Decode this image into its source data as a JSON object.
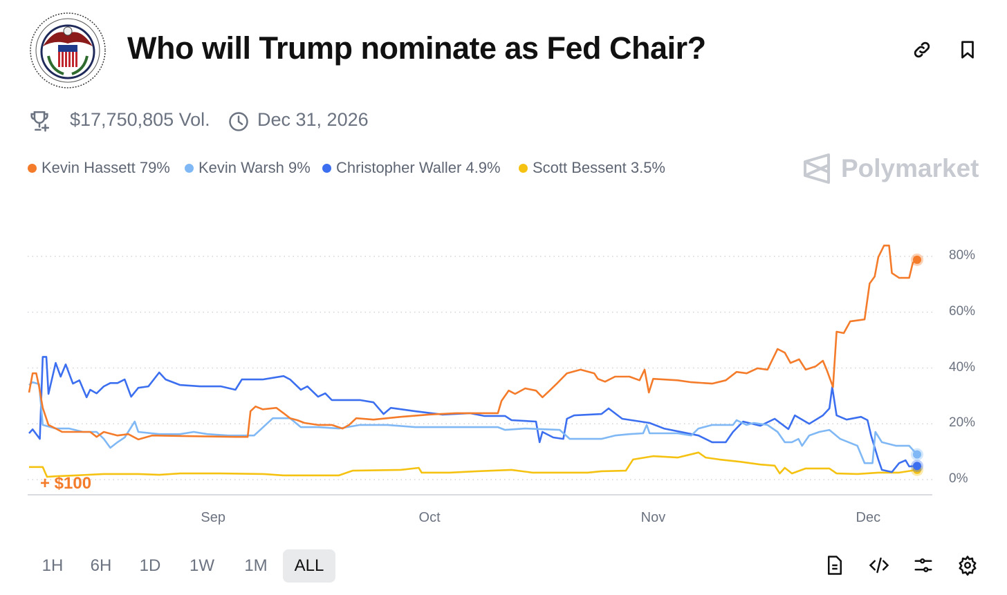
{
  "header": {
    "logo_text": "BOARD OF GOVERNORS OF THE FEDERAL RESERVE SYSTEM",
    "title": "Who will Trump nominate as Fed Chair?",
    "icons": [
      "link-icon",
      "bookmark-icon"
    ]
  },
  "meta": {
    "volume": "$17,750,805 Vol.",
    "end_date": "Dec 31, 2026"
  },
  "brand": "Polymarket",
  "annotation": "+ $100",
  "time_ranges": [
    "1H",
    "6H",
    "1D",
    "1W",
    "1M",
    "ALL"
  ],
  "selected_range": "ALL",
  "footer_icons": [
    "document-icon",
    "code-icon",
    "sliders-icon",
    "settings-icon"
  ],
  "chart_data": {
    "type": "line",
    "title": "Who will Trump nominate as Fed Chair?",
    "x_unit": "days since Aug 6",
    "xlim": [
      0,
      123.5
    ],
    "ylim": [
      0,
      85
    ],
    "ylabel": "",
    "y_ticks": [
      0,
      20,
      40,
      60,
      80
    ],
    "y_tick_labels": [
      "0%",
      "20%",
      "40%",
      "60%",
      "80%"
    ],
    "x_ticks": [
      25.6,
      55.7,
      86.8,
      116.7
    ],
    "x_tick_labels": [
      "Sep",
      "Oct",
      "Nov",
      "Dec"
    ],
    "grid": true,
    "legend_position": "top-left",
    "series": [
      {
        "name": "Kevin Hassett",
        "label": "Kevin Hassett 79%",
        "color": "#f47b2a",
        "last": 79,
        "points": [
          [
            0,
            31.2
          ],
          [
            0.5,
            38.1
          ],
          [
            1,
            38.1
          ],
          [
            1.4,
            33.2
          ],
          [
            1.9,
            25.7
          ],
          [
            2.7,
            19.6
          ],
          [
            3.7,
            18.3
          ],
          [
            4.6,
            17.1
          ],
          [
            8.5,
            17.1
          ],
          [
            9.4,
            15.3
          ],
          [
            10.4,
            17.1
          ],
          [
            12.3,
            15.8
          ],
          [
            13.8,
            16.3
          ],
          [
            15.2,
            14.4
          ],
          [
            17.1,
            15.8
          ],
          [
            28.7,
            15.3
          ],
          [
            30.4,
            15.3
          ],
          [
            30.8,
            24.5
          ],
          [
            31.5,
            26.2
          ],
          [
            32.5,
            25.2
          ],
          [
            34.4,
            25.7
          ],
          [
            35.4,
            23.8
          ],
          [
            36.3,
            22
          ],
          [
            37.3,
            21.3
          ],
          [
            38.3,
            20.3
          ],
          [
            40.2,
            19.6
          ],
          [
            42.1,
            19.6
          ],
          [
            43.6,
            18.3
          ],
          [
            44.5,
            19.6
          ],
          [
            45.5,
            22
          ],
          [
            47.9,
            21.5
          ],
          [
            51.7,
            22.5
          ],
          [
            55.6,
            23.3
          ],
          [
            59.4,
            23.8
          ],
          [
            65.2,
            23.8
          ],
          [
            65.7,
            28.2
          ],
          [
            66.7,
            31.9
          ],
          [
            67.6,
            30.7
          ],
          [
            69,
            32.7
          ],
          [
            70.5,
            31.9
          ],
          [
            71.4,
            29.5
          ],
          [
            72.4,
            31.9
          ],
          [
            73.4,
            34.4
          ],
          [
            74.8,
            38.1
          ],
          [
            76.7,
            39.4
          ],
          [
            78.6,
            38.1
          ],
          [
            79.1,
            36.1
          ],
          [
            80.1,
            35.1
          ],
          [
            81.5,
            36.9
          ],
          [
            83.5,
            36.9
          ],
          [
            84.9,
            35.6
          ],
          [
            85.6,
            39.4
          ],
          [
            86.2,
            31.2
          ],
          [
            86.8,
            36.1
          ],
          [
            90.2,
            35.6
          ],
          [
            92.1,
            34.9
          ],
          [
            95,
            34.4
          ],
          [
            96.9,
            35.6
          ],
          [
            98.4,
            38.6
          ],
          [
            99.8,
            38.1
          ],
          [
            101.3,
            39.9
          ],
          [
            102.7,
            39.4
          ],
          [
            104.1,
            46.8
          ],
          [
            105.1,
            45.5
          ],
          [
            105.9,
            41.8
          ],
          [
            107.1,
            43.1
          ],
          [
            108,
            39.4
          ],
          [
            109.4,
            40.6
          ],
          [
            110.4,
            42.6
          ],
          [
            111,
            38.9
          ],
          [
            111.8,
            33.2
          ],
          [
            112.3,
            53
          ],
          [
            113.3,
            52.5
          ],
          [
            114.2,
            56.7
          ],
          [
            116.2,
            57.4
          ],
          [
            116.9,
            70.3
          ],
          [
            117.6,
            72.8
          ],
          [
            118.1,
            79.7
          ],
          [
            118.9,
            83.9
          ],
          [
            119.6,
            83.9
          ],
          [
            120,
            74
          ],
          [
            121,
            72.3
          ],
          [
            122.4,
            72.3
          ],
          [
            122.9,
            77.7
          ],
          [
            123.5,
            78.8
          ]
        ]
      },
      {
        "name": "Kevin Warsh",
        "label": "Kevin Warsh 9%",
        "color": "#7fb8f5",
        "last": 9,
        "points": [
          [
            0,
            33.9
          ],
          [
            0.5,
            34.9
          ],
          [
            1.4,
            34.2
          ],
          [
            1.9,
            19.6
          ],
          [
            3.7,
            18.3
          ],
          [
            5.6,
            18.3
          ],
          [
            7.5,
            17.1
          ],
          [
            9.4,
            17.1
          ],
          [
            10.4,
            14.6
          ],
          [
            11.3,
            11.4
          ],
          [
            12.3,
            13.4
          ],
          [
            13.3,
            15.1
          ],
          [
            14.7,
            20.8
          ],
          [
            15.2,
            17.1
          ],
          [
            18.1,
            16.3
          ],
          [
            21,
            16.3
          ],
          [
            22.9,
            17.1
          ],
          [
            24.8,
            16.3
          ],
          [
            27.7,
            15.8
          ],
          [
            31.3,
            15.8
          ],
          [
            33.9,
            22
          ],
          [
            36.3,
            22
          ],
          [
            37.8,
            18.8
          ],
          [
            40.2,
            18.8
          ],
          [
            43.1,
            18.3
          ],
          [
            46,
            19.6
          ],
          [
            49.8,
            19.6
          ],
          [
            53.7,
            18.8
          ],
          [
            65.2,
            18.8
          ],
          [
            66.2,
            17.8
          ],
          [
            69,
            18.3
          ],
          [
            73.8,
            17.8
          ],
          [
            75.2,
            14.6
          ],
          [
            79.6,
            14.6
          ],
          [
            81.5,
            15.8
          ],
          [
            83.5,
            16.3
          ],
          [
            85.4,
            16.6
          ],
          [
            85.9,
            19.6
          ],
          [
            86.3,
            16.6
          ],
          [
            90.2,
            16.6
          ],
          [
            92.1,
            15.8
          ],
          [
            93.1,
            18.3
          ],
          [
            95,
            19.6
          ],
          [
            97.9,
            19.6
          ],
          [
            98.4,
            21.3
          ],
          [
            99.8,
            19.6
          ],
          [
            100.8,
            20.3
          ],
          [
            102.7,
            19.6
          ],
          [
            104.1,
            17.1
          ],
          [
            105.1,
            13.4
          ],
          [
            106.1,
            13.4
          ],
          [
            107,
            14.6
          ],
          [
            107.5,
            12.1
          ],
          [
            108.5,
            15.8
          ],
          [
            109.9,
            17.1
          ],
          [
            111.3,
            17.8
          ],
          [
            112.8,
            14.6
          ],
          [
            115.2,
            12.1
          ],
          [
            116.2,
            5.9
          ],
          [
            117.3,
            5.9
          ],
          [
            117.7,
            17.1
          ],
          [
            118.6,
            13.4
          ],
          [
            120.6,
            12.1
          ],
          [
            122.4,
            12.1
          ],
          [
            123.5,
            9
          ]
        ]
      },
      {
        "name": "Christopher Waller",
        "label": "Christopher Waller 4.9%",
        "color": "#3b6ff0",
        "last": 4.9,
        "points": [
          [
            0,
            16.6
          ],
          [
            0.5,
            18
          ],
          [
            1.5,
            14.6
          ],
          [
            1.9,
            44
          ],
          [
            2.4,
            44
          ],
          [
            2.7,
            30.7
          ],
          [
            3.7,
            41.8
          ],
          [
            4.4,
            36.9
          ],
          [
            5.1,
            41.3
          ],
          [
            6.1,
            34.4
          ],
          [
            7,
            35.6
          ],
          [
            8,
            29.5
          ],
          [
            8.5,
            32.2
          ],
          [
            9.4,
            30.9
          ],
          [
            10.4,
            33.4
          ],
          [
            11.3,
            34.6
          ],
          [
            12.3,
            34.6
          ],
          [
            13.3,
            35.9
          ],
          [
            14.2,
            29.7
          ],
          [
            15.2,
            32.9
          ],
          [
            16.6,
            33.4
          ],
          [
            18.1,
            38.4
          ],
          [
            19,
            35.9
          ],
          [
            21,
            33.9
          ],
          [
            23.8,
            33.4
          ],
          [
            26.7,
            33.4
          ],
          [
            28.7,
            32.2
          ],
          [
            29.6,
            35.9
          ],
          [
            32.5,
            35.9
          ],
          [
            35.4,
            37.1
          ],
          [
            36.3,
            35.9
          ],
          [
            37.8,
            32.2
          ],
          [
            38.7,
            33.4
          ],
          [
            40.2,
            29.7
          ],
          [
            41.2,
            30.9
          ],
          [
            42.1,
            28.5
          ],
          [
            46,
            28.5
          ],
          [
            47.9,
            27.7
          ],
          [
            49.3,
            23.5
          ],
          [
            50.3,
            25.7
          ],
          [
            53.7,
            24.5
          ],
          [
            57.5,
            23.3
          ],
          [
            61.3,
            23.8
          ],
          [
            63.3,
            22.8
          ],
          [
            66.2,
            22.8
          ],
          [
            67.1,
            21.3
          ],
          [
            70.5,
            20.8
          ],
          [
            71,
            13.4
          ],
          [
            71.4,
            17.1
          ],
          [
            72.9,
            15.1
          ],
          [
            74.3,
            14.6
          ],
          [
            74.8,
            21.8
          ],
          [
            75.8,
            23
          ],
          [
            79.6,
            23.5
          ],
          [
            80.6,
            25.5
          ],
          [
            82.5,
            21.8
          ],
          [
            86.3,
            20.3
          ],
          [
            88.3,
            18.3
          ],
          [
            91.2,
            16.8
          ],
          [
            93.1,
            15.8
          ],
          [
            95,
            13.4
          ],
          [
            96.9,
            13.4
          ],
          [
            97.9,
            17.1
          ],
          [
            99.3,
            20.8
          ],
          [
            101.7,
            19.3
          ],
          [
            103.7,
            21.8
          ],
          [
            105.6,
            18.1
          ],
          [
            106.5,
            23
          ],
          [
            108.5,
            20
          ],
          [
            110.4,
            23
          ],
          [
            111.3,
            25.5
          ],
          [
            111.7,
            33.2
          ],
          [
            112.3,
            23
          ],
          [
            113.7,
            21.5
          ],
          [
            115.7,
            22.5
          ],
          [
            116.6,
            21.3
          ],
          [
            117.1,
            15.8
          ],
          [
            118.1,
            7.2
          ],
          [
            118.6,
            3.5
          ],
          [
            120,
            2.7
          ],
          [
            121,
            5.9
          ],
          [
            121.9,
            6.9
          ],
          [
            122.4,
            4.7
          ],
          [
            123.5,
            4.9
          ]
        ]
      },
      {
        "name": "Scott Bessent",
        "label": "Scott Bessent 3.5%",
        "color": "#f5c211",
        "last": 3.5,
        "points": [
          [
            0,
            4.5
          ],
          [
            1.9,
            4.5
          ],
          [
            2.5,
            1
          ],
          [
            3.7,
            1.2
          ],
          [
            6.5,
            1.5
          ],
          [
            10.4,
            2
          ],
          [
            15.2,
            2
          ],
          [
            18.1,
            1.7
          ],
          [
            21,
            2.2
          ],
          [
            26.7,
            2.2
          ],
          [
            32.5,
            2
          ],
          [
            35.4,
            1.5
          ],
          [
            43.1,
            1.5
          ],
          [
            45,
            3.2
          ],
          [
            51.7,
            3.5
          ],
          [
            54.2,
            4.2
          ],
          [
            54.6,
            2.5
          ],
          [
            58.5,
            2.5
          ],
          [
            62.3,
            3
          ],
          [
            67.1,
            3.5
          ],
          [
            70,
            2.5
          ],
          [
            77.7,
            2.5
          ],
          [
            79.6,
            3
          ],
          [
            83,
            3.2
          ],
          [
            84,
            7.2
          ],
          [
            86.8,
            8.4
          ],
          [
            90.2,
            7.9
          ],
          [
            93.1,
            9.7
          ],
          [
            94.1,
            7.9
          ],
          [
            96,
            7.2
          ],
          [
            98.9,
            6.4
          ],
          [
            101.7,
            5.4
          ],
          [
            103.7,
            5
          ],
          [
            104.4,
            2.2
          ],
          [
            105.1,
            4.2
          ],
          [
            106.1,
            2.2
          ],
          [
            108,
            4
          ],
          [
            111.3,
            4
          ],
          [
            112.3,
            2.2
          ],
          [
            115.2,
            2
          ],
          [
            118.1,
            2.5
          ],
          [
            121,
            2.5
          ],
          [
            123.5,
            3.5
          ]
        ]
      }
    ]
  }
}
